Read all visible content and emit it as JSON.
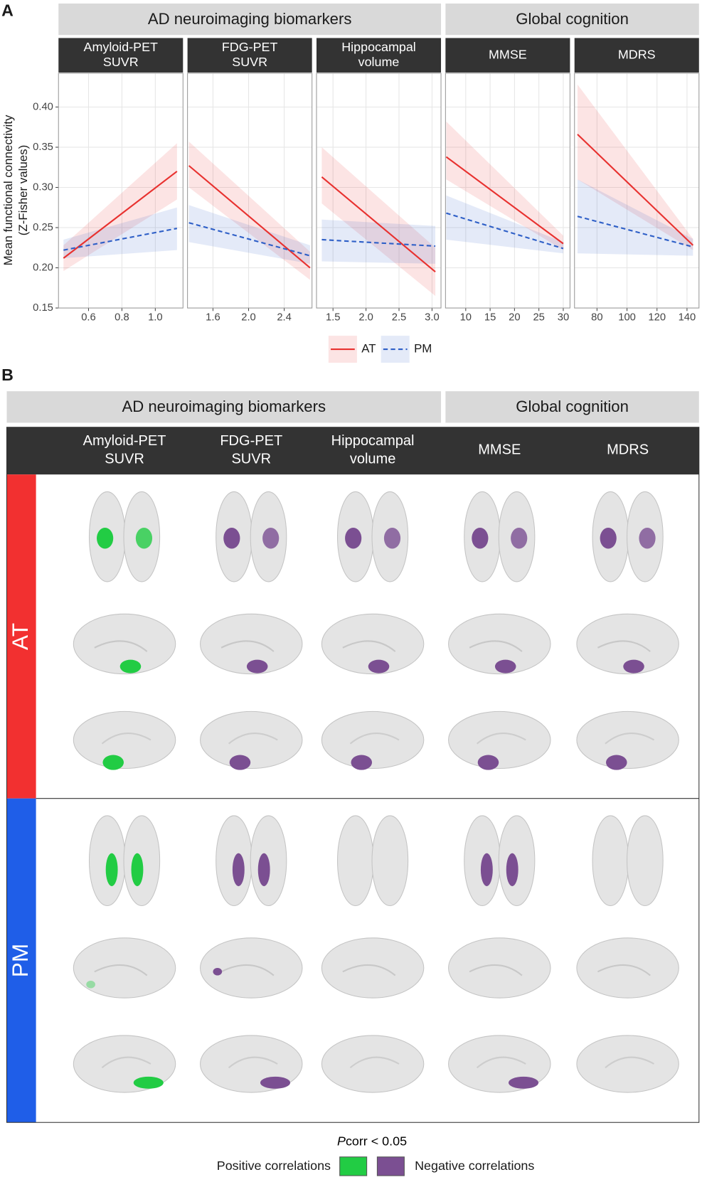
{
  "panel_a": {
    "label": "A",
    "groups": [
      "AD neuroimaging biomarkers",
      "Global cognition"
    ],
    "ylabel": [
      "Mean functional connectivity",
      "(Z-Fisher values)"
    ]
  },
  "chart_data": [
    {
      "type": "line",
      "title": [
        "Amyloid-PET",
        "SUVR"
      ],
      "x": [
        0.45,
        1.13
      ],
      "xlim": [
        0.42,
        1.166
      ],
      "xticks": [
        0.6,
        0.8,
        {
          "value": 1,
          "label": "1.0"
        }
      ],
      "ylim": [
        0.15,
        0.442
      ],
      "yticks": [
        0.15,
        {
          "value": 0.2,
          "label": "0.20"
        },
        0.25,
        {
          "value": 0.3,
          "label": "0.30"
        },
        0.35,
        {
          "value": 0.4,
          "label": "0.40"
        }
      ],
      "grid": true,
      "series": [
        {
          "name": "AT",
          "color": "#e8312f",
          "dash": "solid",
          "values": [
            0.212,
            0.32
          ],
          "lower": [
            0.196,
            0.285
          ],
          "upper": [
            0.228,
            0.355
          ]
        },
        {
          "name": "PM",
          "color": "#2e5fc7",
          "dash": "dashed",
          "values": [
            0.222,
            0.249
          ],
          "lower": [
            0.212,
            0.222
          ],
          "upper": [
            0.235,
            0.275
          ]
        }
      ]
    },
    {
      "type": "line",
      "title": [
        "FDG-PET",
        "SUVR"
      ],
      "x": [
        1.33,
        2.69
      ],
      "xlim": [
        1.314,
        2.712
      ],
      "xticks": [
        1.6,
        {
          "value": 2,
          "label": "2.0"
        },
        2.4
      ],
      "ylim": [
        0.15,
        0.442
      ],
      "yticks": [
        0.15,
        {
          "value": 0.2,
          "label": "0.20"
        },
        0.25,
        {
          "value": 0.3,
          "label": "0.30"
        },
        0.35,
        {
          "value": 0.4,
          "label": "0.40"
        }
      ],
      "grid": true,
      "series": [
        {
          "name": "AT",
          "color": "#e8312f",
          "dash": "solid",
          "values": [
            0.327,
            0.2
          ],
          "lower": [
            0.3,
            0.185
          ],
          "upper": [
            0.357,
            0.22
          ]
        },
        {
          "name": "PM",
          "color": "#2e5fc7",
          "dash": "dashed",
          "values": [
            0.256,
            0.215
          ],
          "lower": [
            0.232,
            0.205
          ],
          "upper": [
            0.278,
            0.228
          ]
        }
      ]
    },
    {
      "type": "line",
      "title": [
        "Hippocampal",
        "volume"
      ],
      "x": [
        1.33,
        3.05
      ],
      "xlim": [
        1.25,
        3.136
      ],
      "xticks": [
        1.5,
        {
          "value": 2,
          "label": "2.0"
        },
        2.5,
        {
          "value": 3,
          "label": "3.0"
        }
      ],
      "ylim": [
        0.15,
        0.442
      ],
      "yticks": [
        0.15,
        {
          "value": 0.2,
          "label": "0.20"
        },
        0.25,
        {
          "value": 0.3,
          "label": "0.30"
        },
        0.35,
        {
          "value": 0.4,
          "label": "0.40"
        }
      ],
      "grid": true,
      "series": [
        {
          "name": "AT",
          "color": "#e8312f",
          "dash": "solid",
          "values": [
            0.313,
            0.195
          ],
          "lower": [
            0.28,
            0.165
          ],
          "upper": [
            0.35,
            0.225
          ]
        },
        {
          "name": "PM",
          "color": "#2e5fc7",
          "dash": "dashed",
          "values": [
            0.235,
            0.227
          ],
          "lower": [
            0.208,
            0.205
          ],
          "upper": [
            0.26,
            0.252
          ]
        }
      ]
    },
    {
      "type": "line",
      "title": [
        "MMSE"
      ],
      "x": [
        6,
        30
      ],
      "xlim": [
        5.85,
        31.38
      ],
      "xticks": [
        10,
        15,
        20,
        25,
        30
      ],
      "ylim": [
        0.15,
        0.442
      ],
      "yticks": [
        0.15,
        {
          "value": 0.2,
          "label": "0.20"
        },
        0.25,
        {
          "value": 0.3,
          "label": "0.30"
        },
        0.35,
        {
          "value": 0.4,
          "label": "0.40"
        }
      ],
      "grid": true,
      "series": [
        {
          "name": "AT",
          "color": "#e8312f",
          "dash": "solid",
          "values": [
            0.338,
            0.23
          ],
          "lower": [
            0.31,
            0.222
          ],
          "upper": [
            0.382,
            0.24
          ]
        },
        {
          "name": "PM",
          "color": "#2e5fc7",
          "dash": "dashed",
          "values": [
            0.268,
            0.224
          ],
          "lower": [
            0.235,
            0.218
          ],
          "upper": [
            0.29,
            0.232
          ]
        }
      ]
    },
    {
      "type": "line",
      "title": [
        "MDRS"
      ],
      "x": [
        67,
        144
      ],
      "xlim": [
        65,
        148
      ],
      "xticks": [
        80,
        100,
        120,
        140
      ],
      "ylim": [
        0.15,
        0.442
      ],
      "yticks": [
        0.15,
        {
          "value": 0.2,
          "label": "0.20"
        },
        0.25,
        {
          "value": 0.3,
          "label": "0.30"
        },
        0.35,
        {
          "value": 0.4,
          "label": "0.40"
        }
      ],
      "grid": true,
      "series": [
        {
          "name": "AT",
          "color": "#e8312f",
          "dash": "solid",
          "values": [
            0.366,
            0.228
          ],
          "lower": [
            0.31,
            0.222
          ],
          "upper": [
            0.428,
            0.236
          ]
        },
        {
          "name": "PM",
          "color": "#2e5fc7",
          "dash": "dashed",
          "values": [
            0.264,
            0.226
          ],
          "lower": [
            0.218,
            0.215
          ],
          "upper": [
            0.31,
            0.236
          ]
        }
      ]
    }
  ],
  "panel_b": {
    "label": "B",
    "groups": [
      "AD neuroimaging biomarkers",
      "Global cognition"
    ],
    "columns": [
      [
        "Amyloid-PET",
        "SUVR"
      ],
      [
        "FDG-PET",
        "SUVR"
      ],
      [
        "Hippocampal",
        "volume"
      ],
      [
        "MMSE"
      ],
      [
        "MDRS"
      ]
    ],
    "rows": [
      {
        "name": "AT",
        "color": "#f23030"
      },
      {
        "name": "PM",
        "color": "#1f5ee8"
      }
    ],
    "legend": {
      "title_italic": "P",
      "title": "corr < 0.05",
      "positive": "Positive correlations",
      "positive_color": "#22cc44",
      "negative": "Negative correlations",
      "negative_color": "#7b4f92"
    }
  }
}
